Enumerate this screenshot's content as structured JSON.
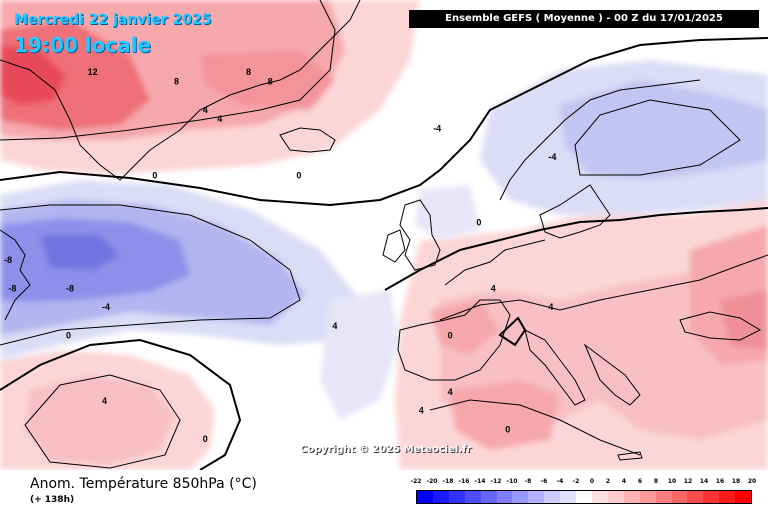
{
  "header": {
    "date_label": "Mercredi 22 janvier 2025",
    "time_label": "19:00 locale",
    "model_label": "Ensemble GEFS  ( Moyenne )  -  00 Z du 17/01/2025"
  },
  "map": {
    "copyright": "Copyright © 2025 Meteociel.fr",
    "colors": {
      "background": "#ffffff",
      "warm_light": "#fcd6d6",
      "warm_medium": "#f6a8ad",
      "warm_strong": "#ef6f78",
      "warm_peak": "#e84a58",
      "cold_light": "#dcdcf6",
      "cold_medium": "#b3b5f0",
      "cold_strong": "#8d90ea",
      "zero_line": "#000000",
      "coastline": "#000000"
    },
    "contour_labels": [
      {
        "text": "12",
        "lon": -42,
        "lat": 72
      },
      {
        "text": "4",
        "lon": -26,
        "lat": 68
      },
      {
        "text": "4",
        "lon": -24,
        "lat": 67
      },
      {
        "text": "8",
        "lon": -30,
        "lat": 71
      },
      {
        "text": "8",
        "lon": -20,
        "lat": 72
      },
      {
        "text": "8",
        "lon": -17,
        "lat": 71
      },
      {
        "text": "0",
        "lon": -33,
        "lat": 61
      },
      {
        "text": "-8",
        "lon": -55,
        "lat": 52
      },
      {
        "text": "-8",
        "lon": -53,
        "lat": 49
      },
      {
        "text": "-8",
        "lon": -45,
        "lat": 49
      },
      {
        "text": "-4",
        "lon": -40,
        "lat": 47
      },
      {
        "text": "0",
        "lon": -45,
        "lat": 44
      },
      {
        "text": "4",
        "lon": -40,
        "lat": 37
      },
      {
        "text": "0",
        "lon": -26,
        "lat": 33
      },
      {
        "text": "0",
        "lon": -13,
        "lat": 61
      },
      {
        "text": "-4",
        "lon": 6,
        "lat": 66
      },
      {
        "text": "-4",
        "lon": 22,
        "lat": 63
      },
      {
        "text": "0",
        "lon": 12,
        "lat": 56
      },
      {
        "text": "4",
        "lon": -8,
        "lat": 45
      },
      {
        "text": "4",
        "lon": 14,
        "lat": 49
      },
      {
        "text": "4",
        "lon": 22,
        "lat": 47
      },
      {
        "text": "0",
        "lon": 8,
        "lat": 44
      },
      {
        "text": "4",
        "lon": 8,
        "lat": 38
      },
      {
        "text": "4",
        "lon": 4,
        "lat": 36
      },
      {
        "text": "0",
        "lon": 16,
        "lat": 34
      }
    ]
  },
  "legend": {
    "variable": "Anom. Température 850hPa (°C)",
    "lead_time": "(+ 138h)",
    "ticks": [
      "-22",
      "-20",
      "-18",
      "-16",
      "-14",
      "-12",
      "-10",
      "-8",
      "-6",
      "-4",
      "-2",
      "0",
      "2",
      "4",
      "6",
      "8",
      "10",
      "12",
      "14",
      "16",
      "18",
      "20"
    ],
    "swatches": [
      "#0000ff",
      "#1a1aff",
      "#3333ff",
      "#4d4dff",
      "#6666ff",
      "#7f7fff",
      "#9999ff",
      "#b3b3ff",
      "#ccccff",
      "#e0e0ff",
      "#ffffff",
      "#ffe0e0",
      "#ffcccc",
      "#ffb3b3",
      "#ff9999",
      "#ff8080",
      "#ff6666",
      "#ff4d4d",
      "#ff3333",
      "#ff1a1a",
      "#ff0000"
    ]
  }
}
